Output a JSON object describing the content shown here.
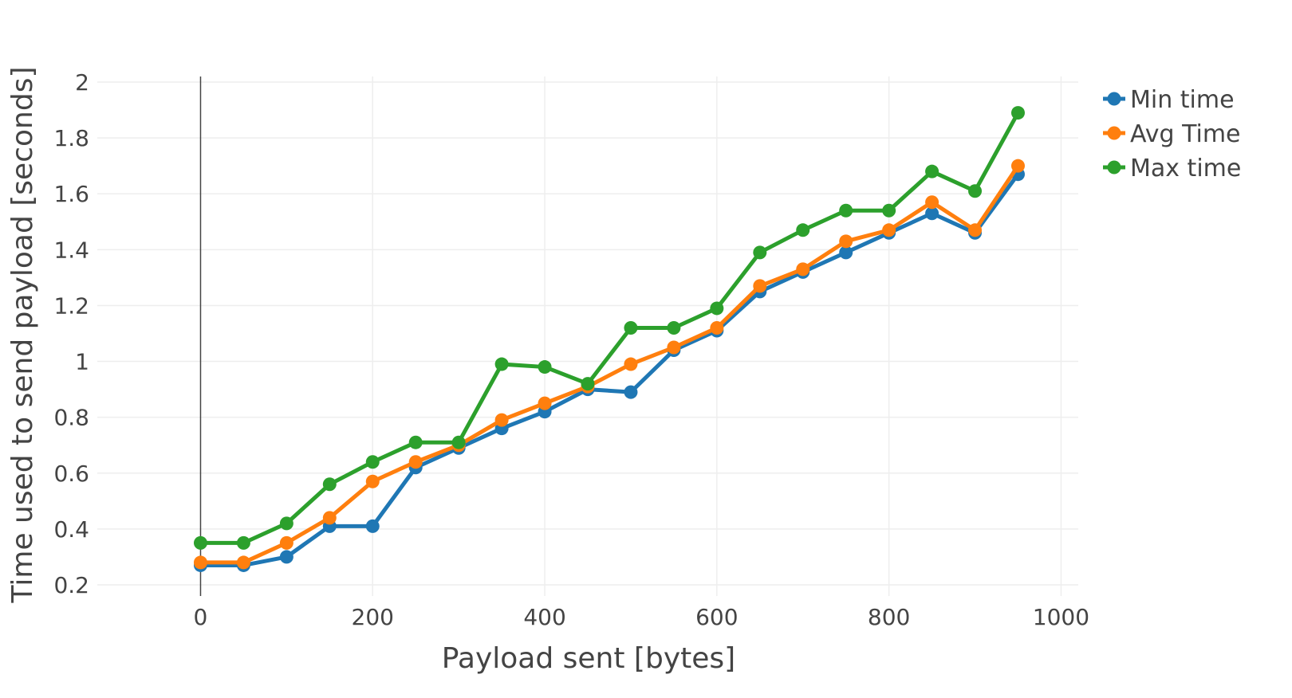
{
  "chart_data": {
    "type": "line",
    "title": "",
    "xlabel": "Payload sent [bytes]",
    "ylabel": "Time used to send payload [seconds]",
    "xlim": [
      -120,
      1020
    ],
    "ylim": [
      0.16,
      2.02
    ],
    "xticks": [
      0,
      200,
      400,
      600,
      800,
      1000
    ],
    "xtick_labels": [
      "0",
      "200",
      "400",
      "600",
      "800",
      "1000"
    ],
    "yticks": [
      0.2,
      0.4,
      0.6,
      0.8,
      1,
      1.2,
      1.4,
      1.6,
      1.8,
      2
    ],
    "ytick_labels": [
      "0.2",
      "0.4",
      "0.6",
      "0.8",
      "1",
      "1.2",
      "1.4",
      "1.6",
      "1.8",
      "2"
    ],
    "grid": true,
    "legend_position": "top-right",
    "x": [
      0,
      50,
      100,
      150,
      200,
      250,
      300,
      350,
      400,
      450,
      500,
      550,
      600,
      650,
      700,
      750,
      800,
      850,
      900,
      950
    ],
    "series": [
      {
        "name": "Min time",
        "color": "#1f77b4",
        "values": [
          0.27,
          0.27,
          0.3,
          0.41,
          0.41,
          0.62,
          0.69,
          0.76,
          0.82,
          0.9,
          0.89,
          1.04,
          1.11,
          1.25,
          1.32,
          1.39,
          1.46,
          1.53,
          1.46,
          1.67
        ]
      },
      {
        "name": "Avg Time",
        "color": "#ff7f0e",
        "values": [
          0.28,
          0.28,
          0.35,
          0.44,
          0.57,
          0.64,
          0.7,
          0.79,
          0.85,
          0.91,
          0.99,
          1.05,
          1.12,
          1.27,
          1.33,
          1.43,
          1.47,
          1.57,
          1.47,
          1.7
        ]
      },
      {
        "name": "Max time",
        "color": "#2ca02c",
        "values": [
          0.35,
          0.35,
          0.42,
          0.56,
          0.64,
          0.71,
          0.71,
          0.99,
          0.98,
          0.92,
          1.12,
          1.12,
          1.19,
          1.39,
          1.47,
          1.54,
          1.54,
          1.68,
          1.61,
          1.89
        ]
      }
    ]
  }
}
